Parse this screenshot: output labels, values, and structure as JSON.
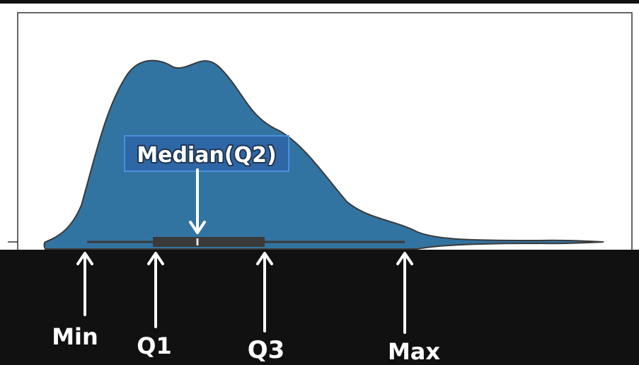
{
  "annotations": {
    "median": "Median(Q2)",
    "min": "Min",
    "q1": "Q1",
    "q3": "Q3",
    "max": "Max"
  },
  "colors": {
    "violin_fill": "#3274a1",
    "violin_stroke": "#3a3a3a",
    "box": "#3a3a3a",
    "median_tick": "#e6e6e6",
    "frame": "#333333",
    "bottom_band": "#111111",
    "top_bar": "#111111",
    "highlight_box": "#4a8fe0",
    "arrow": "#ffffff"
  }
}
